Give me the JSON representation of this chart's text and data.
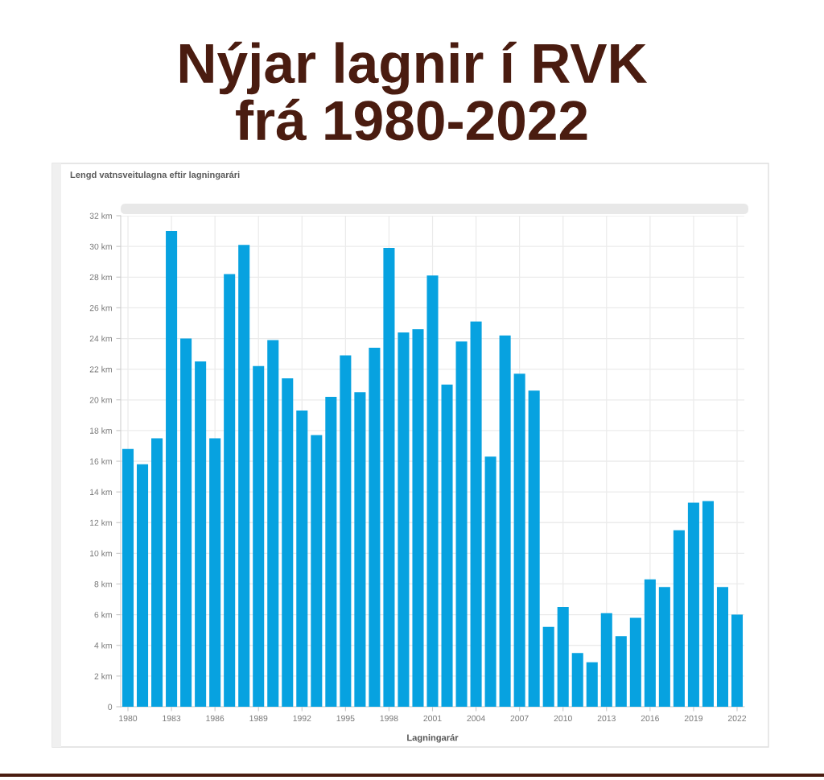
{
  "chart_data": {
    "type": "bar",
    "title": "Nýjar lagnir í RVK\nfrá 1980-2022",
    "subtitle": "Lengd vatnsveitulagna eftir lagningarári",
    "xlabel": "Lagningarár",
    "categories": [
      "1980",
      null,
      null,
      "1983",
      null,
      null,
      "1986",
      null,
      null,
      "1989",
      null,
      null,
      "1992",
      null,
      null,
      "1995",
      null,
      null,
      "1998",
      null,
      null,
      "2001",
      null,
      null,
      "2004",
      null,
      null,
      "2007",
      null,
      null,
      "2010",
      null,
      null,
      "2013",
      null,
      null,
      "2016",
      null,
      null,
      "2019",
      null,
      null,
      "2022"
    ],
    "values": [
      16.8,
      15.8,
      17.5,
      31.0,
      24.0,
      22.5,
      17.5,
      28.2,
      30.1,
      22.2,
      23.9,
      21.4,
      19.3,
      17.7,
      20.2,
      22.9,
      20.5,
      23.4,
      29.9,
      24.4,
      24.6,
      28.1,
      21.0,
      23.8,
      25.1,
      16.3,
      24.2,
      21.7,
      20.6,
      5.2,
      6.5,
      3.5,
      2.9,
      6.1,
      4.6,
      5.8,
      8.3,
      7.8,
      11.5,
      13.3,
      13.4,
      7.8,
      6.0
    ],
    "color": "#07a2e0",
    "ylim": [
      0,
      32
    ],
    "yticks": [
      0,
      {
        "value": 2,
        "label": "2 km"
      },
      {
        "value": 4,
        "label": "4 km"
      },
      {
        "value": 6,
        "label": "6 km"
      },
      {
        "value": 8,
        "label": "8 km"
      },
      {
        "value": 10,
        "label": "10 km"
      },
      {
        "value": 12,
        "label": "12 km"
      },
      {
        "value": 14,
        "label": "14 km"
      },
      {
        "value": 16,
        "label": "16 km"
      },
      {
        "value": 18,
        "label": "18 km"
      },
      {
        "value": 20,
        "label": "20 km"
      },
      {
        "value": 22,
        "label": "22 km"
      },
      {
        "value": 24,
        "label": "24 km"
      },
      {
        "value": 26,
        "label": "26 km"
      },
      {
        "value": 28,
        "label": "28 km"
      },
      {
        "value": 30,
        "label": "30 km"
      },
      {
        "value": 32,
        "label": "32 km"
      }
    ],
    "grid": true
  }
}
